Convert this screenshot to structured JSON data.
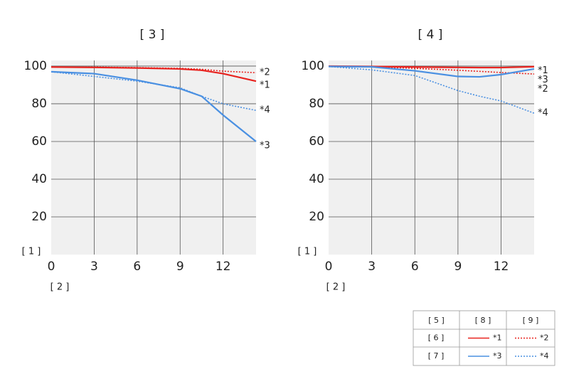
{
  "chart_data": [
    {
      "type": "line",
      "title": "[ 3 ]",
      "y_label": "[ 1 ]",
      "x_label": "[ 2 ]",
      "x": [
        0,
        3,
        6,
        9,
        10.5,
        12,
        14.3
      ],
      "xlim": [
        0,
        14.3
      ],
      "xticks": [
        0,
        3,
        6,
        9,
        12
      ],
      "ylim": [
        0,
        103
      ],
      "yticks": [
        20,
        40,
        60,
        80,
        100
      ],
      "grid": true,
      "series": [
        {
          "name": "*1",
          "color": "#e8231f",
          "dash": "solid",
          "values": [
            99.5,
            99.3,
            99,
            98.5,
            97.8,
            96,
            92
          ]
        },
        {
          "name": "*2",
          "color": "#e8231f",
          "dash": "dotted",
          "values": [
            99.5,
            99.5,
            99.2,
            98.8,
            98.3,
            97.3,
            96.5
          ]
        },
        {
          "name": "*3",
          "color": "#4a90e2",
          "dash": "solid",
          "values": [
            97,
            96,
            92.5,
            88,
            84,
            74,
            60
          ]
        },
        {
          "name": "*4",
          "color": "#4a90e2",
          "dash": "dotted",
          "values": [
            97,
            94.5,
            92,
            88.5,
            84,
            80,
            76.5
          ]
        }
      ]
    },
    {
      "type": "line",
      "title": "[ 4 ]",
      "y_label": "[ 1 ]",
      "x_label": "[ 2 ]",
      "x": [
        0,
        3,
        6,
        9,
        10.5,
        12,
        14.3
      ],
      "xlim": [
        0,
        14.3
      ],
      "xticks": [
        0,
        3,
        6,
        9,
        12
      ],
      "ylim": [
        0,
        103
      ],
      "yticks": [
        20,
        40,
        60,
        80,
        100
      ],
      "grid": true,
      "series": [
        {
          "name": "*1",
          "color": "#e8231f",
          "dash": "solid",
          "values": [
            100,
            99.8,
            99.5,
            99.3,
            99.2,
            99.2,
            99.7
          ]
        },
        {
          "name": "*2",
          "color": "#e8231f",
          "dash": "dotted",
          "values": [
            99.8,
            99.6,
            98.8,
            97.8,
            97.2,
            96.6,
            95.8
          ]
        },
        {
          "name": "*3",
          "color": "#4a90e2",
          "dash": "solid",
          "values": [
            99.8,
            99.6,
            97.5,
            94.5,
            94.3,
            95.5,
            98.5
          ]
        },
        {
          "name": "*4",
          "color": "#4a90e2",
          "dash": "dotted",
          "values": [
            99.8,
            98,
            95,
            87,
            84,
            81.5,
            75
          ]
        }
      ]
    }
  ],
  "legend_table": {
    "headers": [
      "[ 5 ]",
      "[ 8 ]",
      "[ 9 ]"
    ],
    "row_labels": [
      "[ 6 ]",
      "[ 7 ]"
    ]
  }
}
